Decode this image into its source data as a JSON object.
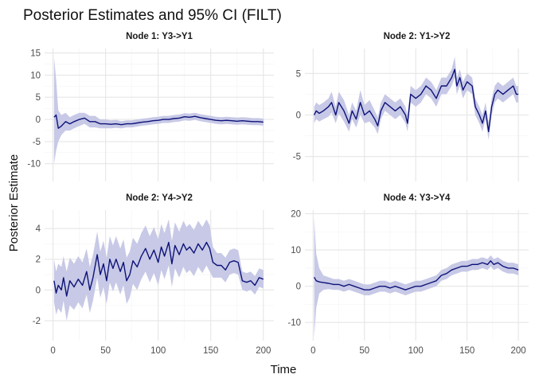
{
  "chart_data": {
    "type": "line",
    "title": "Posterior Estimates and 95% CI (FILT)",
    "xlabel": "Time",
    "ylabel": "Posterior Estimate",
    "line_color": "#0d1278",
    "band_color": "#c7c9e6",
    "grid": true,
    "x_ticks": [
      0,
      50,
      100,
      150,
      200
    ],
    "panels": [
      {
        "strip": "Node 1: Y3->Y1",
        "ylim": [
          -14,
          16
        ],
        "y_ticks": [
          -10,
          -5,
          0,
          5,
          10,
          15
        ],
        "points": [
          [
            1,
            0.5,
            -10,
            14
          ],
          [
            3,
            1.0,
            -7,
            9
          ],
          [
            5,
            -2.0,
            -5,
            2
          ],
          [
            8,
            -1.5,
            -3.5,
            1
          ],
          [
            12,
            -0.5,
            -2.5,
            1.5
          ],
          [
            16,
            -1.0,
            -2.5,
            0.5
          ],
          [
            20,
            -0.5,
            -2.0,
            1.0
          ],
          [
            25,
            0.0,
            -1.5,
            1.5
          ],
          [
            30,
            0.3,
            -1.0,
            1.5
          ],
          [
            35,
            -0.5,
            -1.8,
            0.8
          ],
          [
            40,
            -0.5,
            -1.8,
            0.8
          ],
          [
            45,
            -1.0,
            -2.0,
            0.0
          ],
          [
            50,
            -1.0,
            -2.0,
            0.0
          ],
          [
            55,
            -1.1,
            -2.0,
            -0.2
          ],
          [
            60,
            -1.0,
            -1.9,
            -0.1
          ],
          [
            65,
            -1.2,
            -2.0,
            -0.4
          ],
          [
            70,
            -1.0,
            -1.8,
            -0.2
          ],
          [
            75,
            -1.0,
            -1.8,
            -0.2
          ],
          [
            80,
            -0.8,
            -1.6,
            0.0
          ],
          [
            85,
            -0.6,
            -1.4,
            0.2
          ],
          [
            90,
            -0.5,
            -1.3,
            0.3
          ],
          [
            95,
            -0.3,
            -1.1,
            0.5
          ],
          [
            100,
            -0.2,
            -1.0,
            0.6
          ],
          [
            105,
            0.0,
            -0.8,
            0.8
          ],
          [
            110,
            0.0,
            -0.8,
            0.8
          ],
          [
            115,
            0.2,
            -0.6,
            1.0
          ],
          [
            120,
            0.3,
            -0.5,
            1.1
          ],
          [
            125,
            0.6,
            -0.2,
            1.4
          ],
          [
            130,
            0.5,
            -0.3,
            1.3
          ],
          [
            135,
            0.7,
            -0.1,
            1.5
          ],
          [
            140,
            0.4,
            -0.4,
            1.2
          ],
          [
            145,
            0.2,
            -0.6,
            1.0
          ],
          [
            150,
            0.0,
            -0.8,
            0.8
          ],
          [
            155,
            -0.2,
            -1.0,
            0.6
          ],
          [
            160,
            -0.3,
            -1.1,
            0.5
          ],
          [
            165,
            -0.2,
            -1.0,
            0.6
          ],
          [
            170,
            -0.3,
            -1.1,
            0.5
          ],
          [
            175,
            -0.4,
            -1.2,
            0.4
          ],
          [
            180,
            -0.3,
            -1.1,
            0.5
          ],
          [
            185,
            -0.4,
            -1.2,
            0.4
          ],
          [
            190,
            -0.5,
            -1.3,
            0.3
          ],
          [
            195,
            -0.5,
            -1.3,
            0.3
          ],
          [
            200,
            -0.6,
            -1.4,
            0.2
          ]
        ]
      },
      {
        "strip": "Node 2: Y1->Y2",
        "ylim": [
          -8,
          8
        ],
        "y_ticks": [
          -5,
          0,
          5
        ],
        "points": [
          [
            1,
            0.0,
            -1.0,
            1.0
          ],
          [
            3,
            0.5,
            -0.5,
            1.5
          ],
          [
            6,
            0.2,
            -0.8,
            1.2
          ],
          [
            10,
            0.5,
            -0.5,
            1.5
          ],
          [
            15,
            1.0,
            -0.2,
            2.0
          ],
          [
            18,
            1.5,
            0.3,
            2.8
          ],
          [
            22,
            0.0,
            -1.0,
            1.0
          ],
          [
            25,
            1.5,
            0.2,
            2.8
          ],
          [
            30,
            0.5,
            -0.8,
            1.8
          ],
          [
            35,
            -1.0,
            -2.0,
            0.0
          ],
          [
            38,
            0.5,
            -0.5,
            1.5
          ],
          [
            42,
            -0.5,
            -1.5,
            0.5
          ],
          [
            46,
            1.5,
            0.0,
            3.0
          ],
          [
            50,
            0.0,
            -1.0,
            1.2
          ],
          [
            55,
            0.5,
            -0.8,
            1.8
          ],
          [
            60,
            -0.5,
            -1.5,
            0.5
          ],
          [
            63,
            -1.3,
            -2.3,
            -0.3
          ],
          [
            66,
            0.5,
            -0.5,
            1.5
          ],
          [
            70,
            1.5,
            0.5,
            2.5
          ],
          [
            75,
            1.0,
            0.0,
            2.0
          ],
          [
            80,
            0.5,
            -0.5,
            1.5
          ],
          [
            85,
            1.0,
            0.0,
            2.0
          ],
          [
            90,
            0.0,
            -1.0,
            1.0
          ],
          [
            92,
            -1.0,
            -2.0,
            0.0
          ],
          [
            95,
            2.5,
            1.5,
            3.5
          ],
          [
            100,
            2.0,
            1.0,
            3.0
          ],
          [
            105,
            2.5,
            1.5,
            3.5
          ],
          [
            110,
            3.5,
            2.5,
            4.5
          ],
          [
            115,
            3.0,
            2.0,
            4.0
          ],
          [
            120,
            2.0,
            1.0,
            3.0
          ],
          [
            125,
            3.5,
            2.5,
            4.5
          ],
          [
            130,
            3.5,
            2.5,
            4.5
          ],
          [
            135,
            4.5,
            3.5,
            5.5
          ],
          [
            138,
            5.5,
            4.5,
            7.0
          ],
          [
            140,
            3.5,
            2.5,
            4.5
          ],
          [
            143,
            4.5,
            3.5,
            5.5
          ],
          [
            146,
            3.0,
            2.0,
            4.0
          ],
          [
            150,
            4.0,
            3.0,
            5.0
          ],
          [
            155,
            3.5,
            2.5,
            4.5
          ],
          [
            158,
            1.0,
            0.0,
            2.0
          ],
          [
            162,
            0.0,
            -1.0,
            1.0
          ],
          [
            165,
            -1.0,
            -2.0,
            0.0
          ],
          [
            168,
            0.5,
            -0.5,
            1.5
          ],
          [
            171,
            -2.0,
            -3.0,
            -1.0
          ],
          [
            174,
            1.0,
            0.0,
            2.0
          ],
          [
            177,
            2.5,
            1.5,
            3.5
          ],
          [
            180,
            3.0,
            2.0,
            4.0
          ],
          [
            185,
            2.5,
            1.5,
            3.5
          ],
          [
            190,
            3.0,
            2.0,
            4.0
          ],
          [
            195,
            3.5,
            2.5,
            4.5
          ],
          [
            198,
            2.5,
            1.5,
            3.5
          ],
          [
            200,
            2.5,
            1.5,
            3.5
          ]
        ]
      },
      {
        "strip": "Node 2: Y4->Y2",
        "ylim": [
          -3.3,
          5.2
        ],
        "y_ticks": [
          -2,
          0,
          2,
          4
        ],
        "points": [
          [
            1,
            0.6,
            -0.8,
            2.0
          ],
          [
            3,
            -0.2,
            -1.6,
            1.2
          ],
          [
            5,
            0.3,
            -1.2,
            1.7
          ],
          [
            8,
            0.0,
            -1.5,
            1.5
          ],
          [
            10,
            0.8,
            -0.7,
            2.2
          ],
          [
            13,
            -0.4,
            -2.0,
            1.2
          ],
          [
            16,
            0.6,
            -1.0,
            2.1
          ],
          [
            20,
            0.2,
            -1.3,
            1.7
          ],
          [
            24,
            0.7,
            -0.8,
            2.2
          ],
          [
            28,
            0.3,
            -1.2,
            1.8
          ],
          [
            32,
            1.2,
            -0.3,
            2.7
          ],
          [
            35,
            0.0,
            -1.5,
            1.5
          ],
          [
            38,
            0.8,
            -0.7,
            2.3
          ],
          [
            42,
            2.3,
            0.8,
            3.8
          ],
          [
            45,
            1.0,
            -0.5,
            2.5
          ],
          [
            48,
            1.7,
            0.2,
            3.2
          ],
          [
            51,
            0.6,
            -0.9,
            2.1
          ],
          [
            54,
            2.0,
            0.5,
            3.5
          ],
          [
            57,
            1.4,
            -0.1,
            2.9
          ],
          [
            60,
            2.0,
            0.5,
            3.5
          ],
          [
            64,
            1.2,
            -0.3,
            2.7
          ],
          [
            67,
            1.8,
            0.3,
            3.3
          ],
          [
            70,
            0.6,
            -0.9,
            2.1
          ],
          [
            73,
            1.0,
            -0.5,
            2.5
          ],
          [
            76,
            1.9,
            0.4,
            3.4
          ],
          [
            80,
            1.5,
            0.0,
            3.0
          ],
          [
            84,
            2.2,
            0.7,
            3.7
          ],
          [
            88,
            2.7,
            1.2,
            4.2
          ],
          [
            92,
            2.0,
            0.5,
            3.5
          ],
          [
            96,
            2.6,
            1.1,
            4.1
          ],
          [
            100,
            1.8,
            0.3,
            3.3
          ],
          [
            103,
            2.8,
            1.3,
            4.3
          ],
          [
            106,
            2.2,
            0.7,
            3.7
          ],
          [
            110,
            3.1,
            1.6,
            4.6
          ],
          [
            113,
            1.7,
            0.2,
            3.2
          ],
          [
            116,
            2.9,
            1.4,
            4.4
          ],
          [
            120,
            2.3,
            0.8,
            3.8
          ],
          [
            124,
            3.0,
            1.5,
            4.5
          ],
          [
            127,
            2.6,
            1.1,
            4.1
          ],
          [
            130,
            2.8,
            1.3,
            4.3
          ],
          [
            134,
            2.4,
            0.9,
            3.9
          ],
          [
            138,
            3.0,
            1.5,
            4.5
          ],
          [
            142,
            2.6,
            1.1,
            4.1
          ],
          [
            146,
            3.1,
            1.6,
            4.6
          ],
          [
            149,
            2.7,
            1.2,
            4.2
          ],
          [
            152,
            1.8,
            0.8,
            2.8
          ],
          [
            156,
            1.6,
            0.8,
            2.4
          ],
          [
            160,
            1.6,
            0.8,
            2.4
          ],
          [
            164,
            1.3,
            0.5,
            2.1
          ],
          [
            168,
            1.8,
            1.0,
            2.6
          ],
          [
            172,
            1.9,
            1.1,
            2.7
          ],
          [
            176,
            1.8,
            1.0,
            2.6
          ],
          [
            180,
            0.6,
            0.0,
            1.2
          ],
          [
            184,
            0.5,
            -0.1,
            1.1
          ],
          [
            188,
            0.6,
            0.0,
            1.2
          ],
          [
            192,
            0.3,
            -0.3,
            0.9
          ],
          [
            196,
            0.8,
            0.2,
            1.4
          ],
          [
            200,
            0.7,
            0.1,
            1.3
          ]
        ]
      },
      {
        "strip": "Node 4: Y3->Y4",
        "ylim": [
          -15,
          21
        ],
        "y_ticks": [
          -10,
          0,
          10,
          20
        ],
        "points": [
          [
            1,
            2.5,
            -14,
            19
          ],
          [
            3,
            1.5,
            -6,
            9
          ],
          [
            6,
            1.2,
            -2,
            5
          ],
          [
            10,
            1.0,
            -1.0,
            3.0
          ],
          [
            15,
            0.8,
            -0.8,
            2.5
          ],
          [
            20,
            0.5,
            -1.0,
            2.0
          ],
          [
            25,
            0.5,
            -1.0,
            2.0
          ],
          [
            30,
            0.0,
            -1.5,
            1.5
          ],
          [
            35,
            0.5,
            -1.0,
            2.0
          ],
          [
            40,
            0.0,
            -1.5,
            1.5
          ],
          [
            45,
            -0.5,
            -2.0,
            1.0
          ],
          [
            50,
            -1.0,
            -2.5,
            0.5
          ],
          [
            55,
            -1.0,
            -2.5,
            0.5
          ],
          [
            60,
            -0.5,
            -2.0,
            1.0
          ],
          [
            65,
            0.0,
            -1.5,
            1.5
          ],
          [
            70,
            0.0,
            -1.5,
            1.5
          ],
          [
            75,
            -0.5,
            -2.0,
            1.0
          ],
          [
            80,
            0.0,
            -1.5,
            1.5
          ],
          [
            85,
            -0.5,
            -2.0,
            1.0
          ],
          [
            90,
            -1.0,
            -2.5,
            0.5
          ],
          [
            95,
            -0.5,
            -2.0,
            1.0
          ],
          [
            100,
            0.0,
            -1.5,
            1.5
          ],
          [
            105,
            0.0,
            -1.5,
            1.5
          ],
          [
            110,
            0.5,
            -1.0,
            2.0
          ],
          [
            115,
            1.0,
            -0.5,
            2.5
          ],
          [
            120,
            1.5,
            0.0,
            3.0
          ],
          [
            125,
            3.0,
            1.5,
            4.5
          ],
          [
            130,
            3.5,
            2.0,
            5.0
          ],
          [
            135,
            4.5,
            3.0,
            6.0
          ],
          [
            140,
            5.0,
            3.5,
            6.5
          ],
          [
            145,
            5.5,
            4.0,
            7.0
          ],
          [
            150,
            5.5,
            4.0,
            7.0
          ],
          [
            155,
            6.0,
            4.5,
            7.5
          ],
          [
            160,
            6.0,
            4.5,
            7.5
          ],
          [
            165,
            6.5,
            5.0,
            8.0
          ],
          [
            170,
            6.0,
            4.5,
            7.5
          ],
          [
            173,
            7.0,
            5.5,
            8.5
          ],
          [
            176,
            6.0,
            4.5,
            7.5
          ],
          [
            180,
            6.5,
            5.0,
            8.0
          ],
          [
            185,
            5.5,
            4.0,
            7.0
          ],
          [
            190,
            5.0,
            3.5,
            6.5
          ],
          [
            195,
            5.0,
            3.5,
            6.5
          ],
          [
            200,
            4.5,
            3.0,
            6.0
          ]
        ]
      }
    ]
  }
}
